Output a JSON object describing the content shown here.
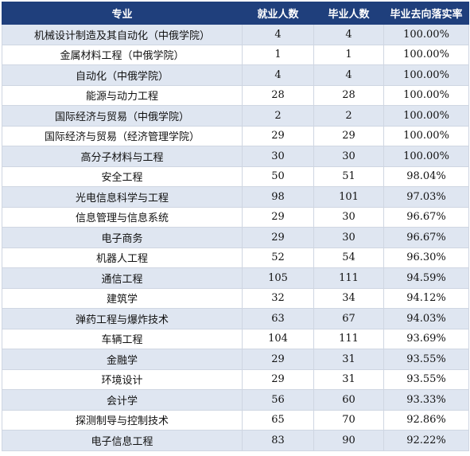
{
  "table": {
    "headers": [
      "专业",
      "就业人数",
      "毕业人数",
      "毕业去向落实率"
    ],
    "rows": [
      [
        "机械设计制造及其自动化（中俄学院）",
        "4",
        "4",
        "100.00%"
      ],
      [
        "金属材料工程（中俄学院）",
        "1",
        "1",
        "100.00%"
      ],
      [
        "自动化（中俄学院）",
        "4",
        "4",
        "100.00%"
      ],
      [
        "能源与动力工程",
        "28",
        "28",
        "100.00%"
      ],
      [
        "国际经济与贸易（中俄学院）",
        "2",
        "2",
        "100.00%"
      ],
      [
        "国际经济与贸易（经济管理学院）",
        "29",
        "29",
        "100.00%"
      ],
      [
        "高分子材料与工程",
        "30",
        "30",
        "100.00%"
      ],
      [
        "安全工程",
        "50",
        "51",
        "98.04%"
      ],
      [
        "光电信息科学与工程",
        "98",
        "101",
        "97.03%"
      ],
      [
        "信息管理与信息系统",
        "29",
        "30",
        "96.67%"
      ],
      [
        "电子商务",
        "29",
        "30",
        "96.67%"
      ],
      [
        "机器人工程",
        "52",
        "54",
        "96.30%"
      ],
      [
        "通信工程",
        "105",
        "111",
        "94.59%"
      ],
      [
        "建筑学",
        "32",
        "34",
        "94.12%"
      ],
      [
        "弹药工程与爆炸技术",
        "63",
        "67",
        "94.03%"
      ],
      [
        "车辆工程",
        "104",
        "111",
        "93.69%"
      ],
      [
        "金融学",
        "29",
        "31",
        "93.55%"
      ],
      [
        "环境设计",
        "29",
        "31",
        "93.55%"
      ],
      [
        "会计学",
        "56",
        "60",
        "93.33%"
      ],
      [
        "探测制导与控制技术",
        "65",
        "70",
        "92.86%"
      ],
      [
        "电子信息工程",
        "83",
        "90",
        "92.22%"
      ]
    ]
  },
  "colors": {
    "header_bg": "#1f3f7c",
    "header_text": "#ffffff",
    "row_stripe": "#dfe6f1",
    "row_plain": "#ffffff"
  }
}
